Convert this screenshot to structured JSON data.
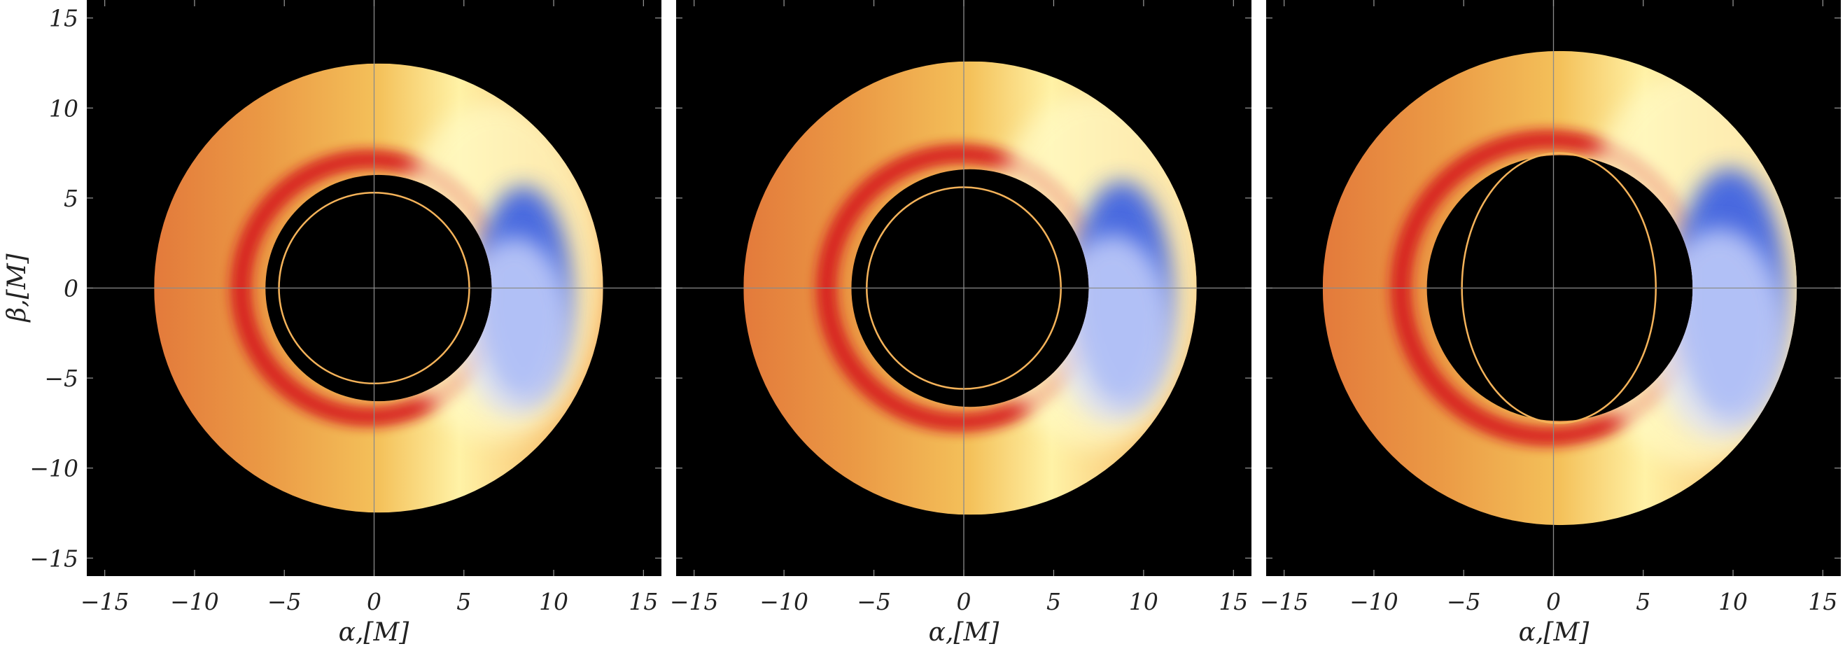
{
  "chart_data": [
    {
      "type": "heatmap",
      "title": "",
      "xlabel": "α,[M]",
      "ylabel": "β,[M]",
      "xlim": [
        -16,
        16
      ],
      "ylim": [
        -16,
        16
      ],
      "xticks": [
        -15,
        -10,
        -5,
        0,
        5,
        10,
        15
      ],
      "yticks": [
        -15,
        -10,
        -5,
        0,
        5,
        10,
        15
      ],
      "xtick_labels": [
        "−15",
        "−10",
        "−5",
        "0",
        "5",
        "10",
        "15"
      ],
      "ytick_labels": [
        "−15",
        "−10",
        "−5",
        "0",
        "5",
        "10",
        "15"
      ],
      "background_color": "#000000",
      "disk": {
        "outer_radius": 12.5,
        "inner_radius": 6.3,
        "center_x": 0.25
      },
      "photon_ring": {
        "rx": 5.3,
        "ry": 5.3,
        "center_x": 0,
        "color": "#f5b35a"
      }
    },
    {
      "type": "heatmap",
      "title": "",
      "xlabel": "α,[M]",
      "ylabel": "",
      "xlim": [
        -16,
        16
      ],
      "ylim": [
        -16,
        16
      ],
      "xticks": [
        -15,
        -10,
        -5,
        0,
        5,
        10,
        15
      ],
      "yticks": [
        -15,
        -10,
        -5,
        0,
        5,
        10,
        15
      ],
      "xtick_labels": [
        "−15",
        "−10",
        "−5",
        "0",
        "5",
        "10",
        "15"
      ],
      "ytick_labels": [],
      "background_color": "#000000",
      "disk": {
        "outer_radius": 12.6,
        "inner_radius": 6.6,
        "center_x": 0.35
      },
      "photon_ring": {
        "rx": 5.4,
        "ry": 5.6,
        "center_x": 0,
        "color": "#f5b35a"
      }
    },
    {
      "type": "heatmap",
      "title": "",
      "xlabel": "α,[M]",
      "ylabel": "",
      "xlim": [
        -16,
        16
      ],
      "ylim": [
        -16,
        16
      ],
      "xticks": [
        -15,
        -10,
        -5,
        0,
        5,
        10,
        15
      ],
      "yticks": [
        -15,
        -10,
        -5,
        0,
        5,
        10,
        15
      ],
      "xtick_labels": [
        "−15",
        "−10",
        "−5",
        "0",
        "5",
        "10",
        "15"
      ],
      "ytick_labels": [],
      "background_color": "#000000",
      "disk": {
        "outer_radius": 13.2,
        "inner_radius": 7.4,
        "center_x": 0.35
      },
      "photon_ring": {
        "rx": 5.4,
        "ry": 7.5,
        "center_x": 0.3,
        "color": "#f5b35a"
      }
    }
  ]
}
